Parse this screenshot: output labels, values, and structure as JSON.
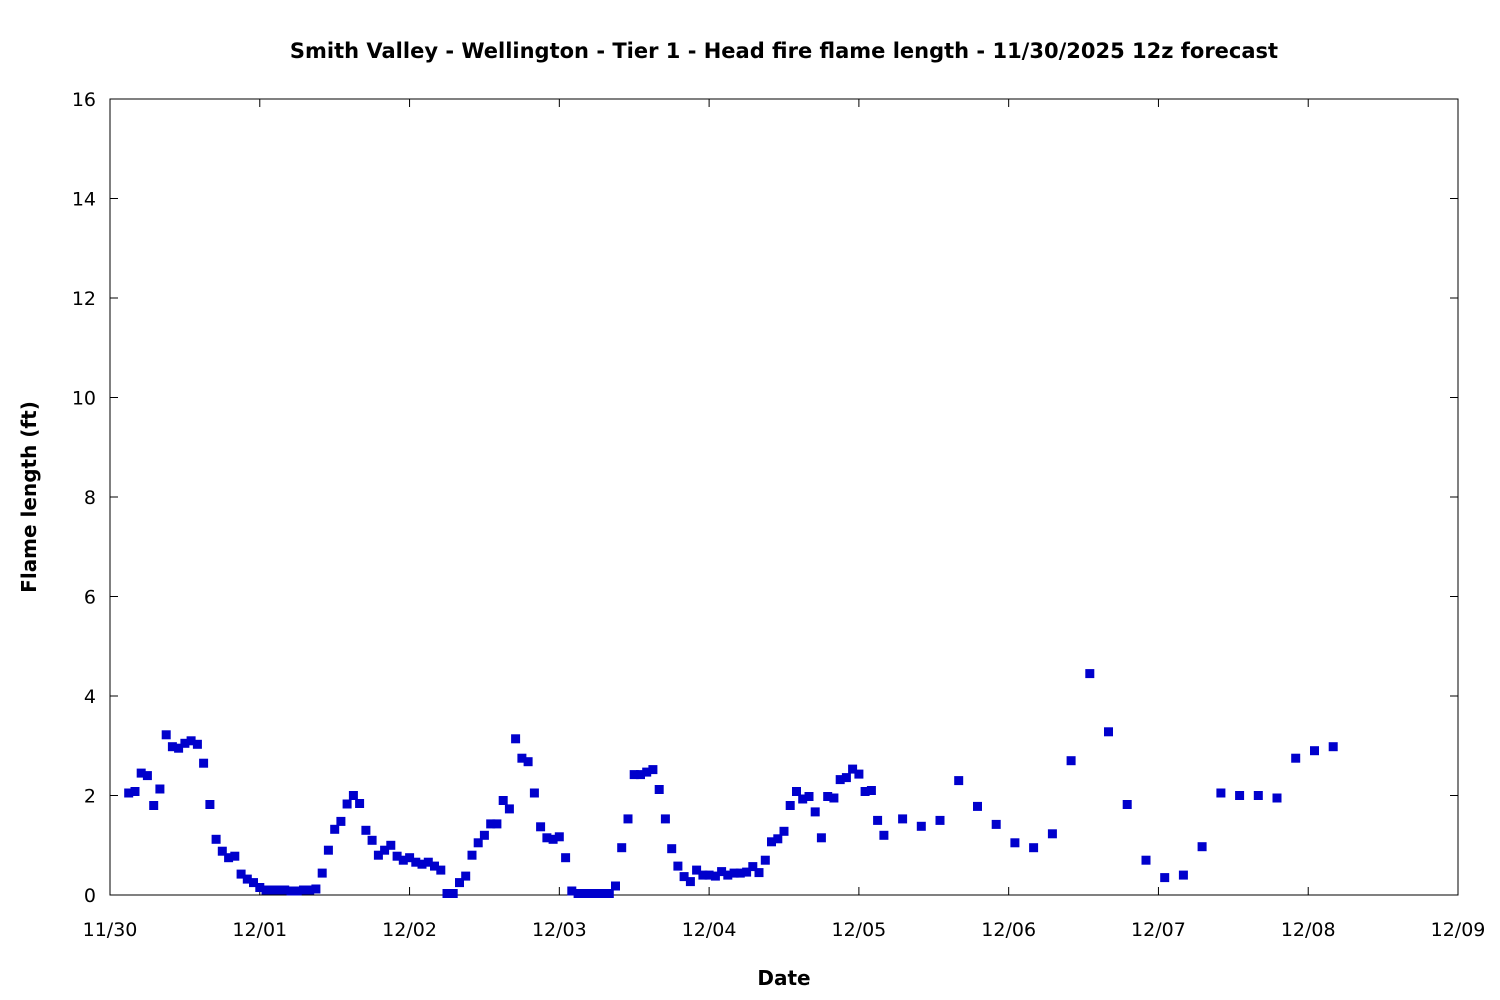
{
  "chart_data": {
    "type": "scatter",
    "title": "Smith Valley - Wellington - Tier 1 - Head fire flame length - 11/30/2025 12z forecast",
    "xlabel": "Date",
    "ylabel": "Flame length (ft)",
    "x_tick_labels": [
      "11/30",
      "12/01",
      "12/02",
      "12/03",
      "12/04",
      "12/05",
      "12/06",
      "12/07",
      "12/08",
      "12/09"
    ],
    "y_tick_labels": [
      "0",
      "2",
      "4",
      "6",
      "8",
      "10",
      "12",
      "14",
      "16"
    ],
    "xlim": [
      "2025-11-30 00:00",
      "2025-12-09 00:00"
    ],
    "ylim": [
      0,
      16
    ],
    "marker_color": "#0000cc",
    "grid": false,
    "legend": "none",
    "x_unit": "hours after 11/30 00:00",
    "points": [
      [
        3,
        2.05
      ],
      [
        4,
        2.08
      ],
      [
        5,
        2.45
      ],
      [
        6,
        2.4
      ],
      [
        7,
        1.8
      ],
      [
        8,
        2.13
      ],
      [
        9,
        3.22
      ],
      [
        10,
        2.98
      ],
      [
        11,
        2.95
      ],
      [
        12,
        3.05
      ],
      [
        13,
        3.1
      ],
      [
        14,
        3.03
      ],
      [
        15,
        2.65
      ],
      [
        16,
        1.82
      ],
      [
        17,
        1.12
      ],
      [
        18,
        0.88
      ],
      [
        19,
        0.75
      ],
      [
        20,
        0.78
      ],
      [
        21,
        0.42
      ],
      [
        22,
        0.32
      ],
      [
        23,
        0.25
      ],
      [
        24,
        0.15
      ],
      [
        25,
        0.1
      ],
      [
        26,
        0.1
      ],
      [
        27,
        0.1
      ],
      [
        28,
        0.1
      ],
      [
        29,
        0.08
      ],
      [
        30,
        0.08
      ],
      [
        31,
        0.1
      ],
      [
        32,
        0.1
      ],
      [
        33,
        0.12
      ],
      [
        34,
        0.44
      ],
      [
        35,
        0.9
      ],
      [
        36,
        1.32
      ],
      [
        37,
        1.48
      ],
      [
        38,
        1.83
      ],
      [
        39,
        2.0
      ],
      [
        40,
        1.84
      ],
      [
        41,
        1.3
      ],
      [
        42,
        1.1
      ],
      [
        43,
        0.8
      ],
      [
        44,
        0.9
      ],
      [
        45,
        1.0
      ],
      [
        46,
        0.78
      ],
      [
        47,
        0.7
      ],
      [
        48,
        0.75
      ],
      [
        49,
        0.66
      ],
      [
        50,
        0.62
      ],
      [
        51,
        0.66
      ],
      [
        52,
        0.58
      ],
      [
        53,
        0.5
      ],
      [
        54,
        0.03
      ],
      [
        55,
        0.03
      ],
      [
        56,
        0.25
      ],
      [
        57,
        0.38
      ],
      [
        58,
        0.8
      ],
      [
        59,
        1.05
      ],
      [
        60,
        1.2
      ],
      [
        61,
        1.43
      ],
      [
        62,
        1.43
      ],
      [
        63,
        1.9
      ],
      [
        64,
        1.73
      ],
      [
        65,
        3.14
      ],
      [
        66,
        2.75
      ],
      [
        67,
        2.68
      ],
      [
        68,
        2.05
      ],
      [
        69,
        1.37
      ],
      [
        70,
        1.15
      ],
      [
        71,
        1.12
      ],
      [
        72,
        1.17
      ],
      [
        73,
        0.75
      ],
      [
        74,
        0.08
      ],
      [
        75,
        0.03
      ],
      [
        76,
        0.03
      ],
      [
        77,
        0.03
      ],
      [
        78,
        0.03
      ],
      [
        79,
        0.03
      ],
      [
        80,
        0.03
      ],
      [
        81,
        0.18
      ],
      [
        82,
        0.95
      ],
      [
        83,
        1.53
      ],
      [
        84,
        2.42
      ],
      [
        85,
        2.42
      ],
      [
        86,
        2.47
      ],
      [
        87,
        2.52
      ],
      [
        88,
        2.12
      ],
      [
        89,
        1.53
      ],
      [
        90,
        0.93
      ],
      [
        91,
        0.58
      ],
      [
        92,
        0.37
      ],
      [
        93,
        0.27
      ],
      [
        94,
        0.5
      ],
      [
        95,
        0.4
      ],
      [
        96,
        0.4
      ],
      [
        97,
        0.38
      ],
      [
        98,
        0.47
      ],
      [
        99,
        0.4
      ],
      [
        100,
        0.44
      ],
      [
        101,
        0.44
      ],
      [
        102,
        0.46
      ],
      [
        103,
        0.57
      ],
      [
        104,
        0.45
      ],
      [
        105,
        0.7
      ],
      [
        106,
        1.07
      ],
      [
        107,
        1.13
      ],
      [
        108,
        1.28
      ],
      [
        109,
        1.8
      ],
      [
        110,
        2.08
      ],
      [
        111,
        1.93
      ],
      [
        112,
        1.98
      ],
      [
        113,
        1.67
      ],
      [
        114,
        1.15
      ],
      [
        115,
        1.98
      ],
      [
        116,
        1.95
      ],
      [
        117,
        2.32
      ],
      [
        118,
        2.36
      ],
      [
        119,
        2.53
      ],
      [
        120,
        2.43
      ],
      [
        121,
        2.08
      ],
      [
        122,
        2.1
      ],
      [
        123,
        1.5
      ],
      [
        124,
        1.2
      ],
      [
        127,
        1.53
      ],
      [
        130,
        1.38
      ],
      [
        133,
        1.5
      ],
      [
        136,
        2.3
      ],
      [
        139,
        1.78
      ],
      [
        142,
        1.42
      ],
      [
        145,
        1.05
      ],
      [
        148,
        0.95
      ],
      [
        151,
        1.23
      ],
      [
        154,
        2.7
      ],
      [
        157,
        4.45
      ],
      [
        160,
        3.28
      ],
      [
        163,
        1.82
      ],
      [
        166,
        0.7
      ],
      [
        169,
        0.35
      ],
      [
        172,
        0.4
      ],
      [
        175,
        0.97
      ],
      [
        178,
        2.05
      ],
      [
        181,
        2.0
      ],
      [
        184,
        2.0
      ],
      [
        187,
        1.95
      ],
      [
        190,
        2.75
      ],
      [
        193,
        2.9
      ],
      [
        196,
        2.98
      ]
    ]
  }
}
